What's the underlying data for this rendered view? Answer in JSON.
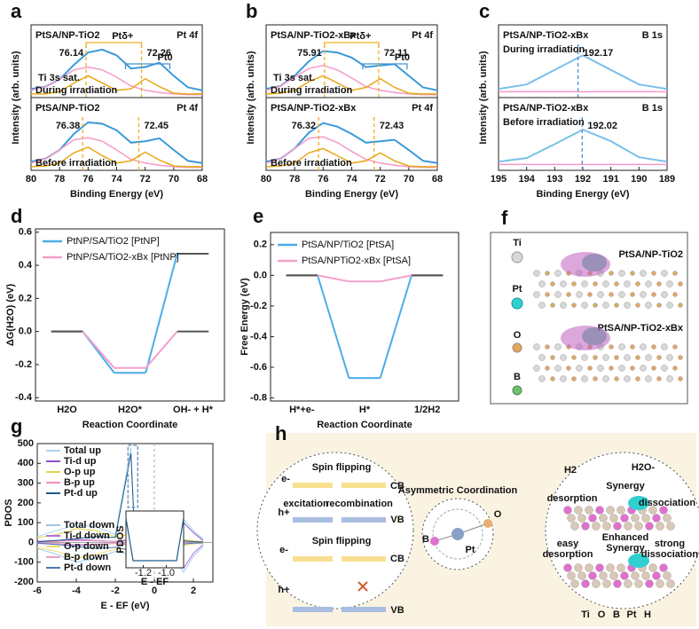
{
  "chart_data": [
    {
      "type": "xps",
      "panel": "a",
      "xlabel": "Binding Energy (eV)",
      "ylabel": "Intensity (arb. units)",
      "xlim": [
        80,
        68
      ],
      "xticks": [
        80,
        78,
        76,
        74,
        72,
        70,
        68
      ],
      "ylim": [
        0,
        1
      ],
      "x": [
        80,
        79,
        78,
        77,
        76,
        75,
        74,
        73,
        72,
        71,
        70,
        69,
        68
      ],
      "subplots": [
        {
          "label": "PtSA/NP-TiO2",
          "core": "Pt 4f",
          "condition": "During irradiation",
          "satellite": "Ti 3s sat.",
          "states": [
            "Ptδ+",
            "Pt0"
          ],
          "peaks": [
            {
              "value": 76.14,
              "color": "#f0b020"
            },
            {
              "value": 72.26,
              "color": "#f0b020"
            }
          ],
          "series": [
            {
              "color": "#3a9ad9",
              "values": [
                0.12,
                0.15,
                0.25,
                0.45,
                0.62,
                0.66,
                0.58,
                0.4,
                0.42,
                0.48,
                0.3,
                0.14,
                0.1
              ]
            },
            {
              "color": "#f59ac8",
              "values": [
                0.1,
                0.15,
                0.25,
                0.38,
                0.42,
                0.38,
                0.28,
                0.16,
                0.1,
                0.07,
                0.05,
                0.04,
                0.04
              ]
            },
            {
              "color": "#e6a817",
              "values": [
                0.05,
                0.05,
                0.08,
                0.2,
                0.3,
                0.2,
                0.1,
                0.12,
                0.26,
                0.15,
                0.06,
                0.05,
                0.05
              ]
            }
          ]
        },
        {
          "label": "PtSA/NP-TiO2",
          "core": "Pt 4f",
          "condition": "Before irradiation",
          "peaks": [
            {
              "value": 76.38,
              "color": "#f0b020"
            },
            {
              "value": 72.45,
              "color": "#f0b020"
            }
          ],
          "series": [
            {
              "color": "#3a9ad9",
              "values": [
                0.12,
                0.16,
                0.28,
                0.5,
                0.66,
                0.64,
                0.55,
                0.38,
                0.4,
                0.44,
                0.28,
                0.13,
                0.1
              ]
            },
            {
              "color": "#f59ac8",
              "values": [
                0.1,
                0.16,
                0.28,
                0.42,
                0.45,
                0.4,
                0.28,
                0.15,
                0.1,
                0.07,
                0.05,
                0.04,
                0.04
              ]
            },
            {
              "color": "#e6a817",
              "values": [
                0.05,
                0.06,
                0.1,
                0.24,
                0.32,
                0.2,
                0.1,
                0.13,
                0.25,
                0.14,
                0.06,
                0.05,
                0.05
              ]
            }
          ]
        }
      ]
    },
    {
      "type": "xps",
      "panel": "b",
      "xlabel": "Binding Energy (eV)",
      "ylabel": "Intensity (arb. units)",
      "xlim": [
        80,
        68
      ],
      "xticks": [
        80,
        78,
        76,
        74,
        72,
        70,
        68
      ],
      "ylim": [
        0,
        1
      ],
      "x": [
        80,
        79,
        78,
        77,
        76,
        75,
        74,
        73,
        72,
        71,
        70,
        69,
        68
      ],
      "subplots": [
        {
          "label": "PtSA/NP-TiO2-xBx",
          "core": "Pt 4f",
          "condition": "During irradiation",
          "satellite": "Ti 3s sat.",
          "states": [
            "Ptδ+",
            "Pt0"
          ],
          "peaks": [
            {
              "value": 75.91,
              "color": "#f0b020"
            },
            {
              "value": 72.11,
              "color": "#f0b020"
            }
          ],
          "series": [
            {
              "color": "#3a9ad9",
              "values": [
                0.12,
                0.16,
                0.3,
                0.5,
                0.64,
                0.62,
                0.55,
                0.42,
                0.44,
                0.46,
                0.3,
                0.14,
                0.1
              ]
            },
            {
              "color": "#f59ac8",
              "values": [
                0.1,
                0.16,
                0.28,
                0.4,
                0.44,
                0.38,
                0.27,
                0.15,
                0.1,
                0.07,
                0.05,
                0.04,
                0.04
              ]
            },
            {
              "color": "#e6a817",
              "values": [
                0.05,
                0.06,
                0.1,
                0.22,
                0.3,
                0.2,
                0.1,
                0.14,
                0.26,
                0.14,
                0.06,
                0.05,
                0.05
              ]
            }
          ]
        },
        {
          "label": "PtSA/NP-TiO2-xBx",
          "core": "Pt 4f",
          "condition": "Before irradiation",
          "peaks": [
            {
              "value": 76.32,
              "color": "#f0b020"
            },
            {
              "value": 72.43,
              "color": "#f0b020"
            }
          ],
          "series": [
            {
              "color": "#3a9ad9",
              "values": [
                0.12,
                0.16,
                0.3,
                0.52,
                0.65,
                0.6,
                0.5,
                0.38,
                0.4,
                0.42,
                0.28,
                0.13,
                0.1
              ]
            },
            {
              "color": "#f59ac8",
              "values": [
                0.1,
                0.16,
                0.3,
                0.44,
                0.46,
                0.38,
                0.26,
                0.15,
                0.1,
                0.07,
                0.05,
                0.04,
                0.04
              ]
            },
            {
              "color": "#e6a817",
              "values": [
                0.05,
                0.06,
                0.1,
                0.24,
                0.3,
                0.2,
                0.1,
                0.13,
                0.24,
                0.13,
                0.06,
                0.05,
                0.05
              ]
            }
          ]
        }
      ]
    },
    {
      "type": "xps",
      "panel": "c",
      "xlabel": "Binding Energy (eV)",
      "ylabel": "Intensity (arb. units)",
      "xlim": [
        195,
        189
      ],
      "xticks": [
        195,
        194,
        193,
        192,
        191,
        190,
        189
      ],
      "ylim": [
        0,
        1
      ],
      "x": [
        195,
        194,
        193,
        192,
        191,
        190,
        189
      ],
      "subplots": [
        {
          "label": "PtSA/NP-TiO2-xBx",
          "core": "B 1s",
          "condition": "During irradiation",
          "peaks": [
            {
              "value": 192.17,
              "color": "#4a90d0"
            }
          ],
          "series": [
            {
              "color": "#7cc0ea",
              "values": [
                0.12,
                0.18,
                0.38,
                0.58,
                0.38,
                0.18,
                0.12
              ]
            },
            {
              "color": "#f59ac8",
              "values": [
                0.08,
                0.08,
                0.08,
                0.08,
                0.08,
                0.08,
                0.08
              ]
            }
          ]
        },
        {
          "label": "PtSA/NP-TiO2-xBx",
          "core": "B 1s",
          "condition": "Before irradiation",
          "peaks": [
            {
              "value": 192.02,
              "color": "#4a90d0"
            }
          ],
          "series": [
            {
              "color": "#7cc0ea",
              "values": [
                0.12,
                0.17,
                0.36,
                0.56,
                0.4,
                0.18,
                0.12
              ]
            },
            {
              "color": "#f59ac8",
              "values": [
                0.08,
                0.08,
                0.08,
                0.08,
                0.08,
                0.08,
                0.08
              ]
            }
          ]
        }
      ]
    },
    {
      "type": "energy",
      "panel": "d",
      "ylabel": "ΔG(H2O) (eV)",
      "xlabel": "Reaction Coordinate",
      "categories": [
        "H2O",
        "H2O*",
        "OH- + H*"
      ],
      "ylim": [
        -0.42,
        0.62
      ],
      "yticks": [
        -0.4,
        -0.2,
        {
          "value": 0,
          "label": "0.0"
        },
        0.2,
        0.4,
        0.6
      ],
      "series": [
        {
          "name": "PtNP/SA/TiO2 [PtNP]",
          "color": "#4aaee8",
          "values": [
            0,
            -0.25,
            0.47
          ]
        },
        {
          "name": "PtNP/SA/TiO2-xBx [PtNP]",
          "color": "#f5a0cc",
          "values": [
            0,
            -0.22,
            0
          ]
        }
      ]
    },
    {
      "type": "energy",
      "panel": "e",
      "ylabel": "Free Energy (eV)",
      "xlabel": "Reaction Coordinate",
      "categories": [
        "H*+e-",
        "H*",
        "1/2H2"
      ],
      "ylim": [
        -0.82,
        0.28
      ],
      "yticks": [
        -0.8,
        -0.6,
        -0.4,
        -0.2,
        {
          "value": 0,
          "label": "0.0"
        },
        0.2
      ],
      "series": [
        {
          "name": "PtSA/NP/TiO2 [PtSA]",
          "color": "#4aaee8",
          "values": [
            0,
            -0.67,
            0
          ]
        },
        {
          "name": "PtSA/NPTiO2-xBx [PtSA]",
          "color": "#f5a0cc",
          "values": [
            0,
            -0.04,
            0
          ]
        }
      ]
    },
    {
      "type": "pdos",
      "panel": "g",
      "ylabel": "PDOS",
      "xlabel": "E - EF (eV)",
      "xlim": [
        -6,
        3
      ],
      "xticks": [
        -6,
        -4,
        -2,
        0,
        2
      ],
      "ylim": [
        -200,
        500
      ],
      "yticks": [
        -200,
        -100,
        0,
        100,
        200,
        300,
        400,
        500
      ],
      "x": [
        -6,
        -5,
        -4,
        -3,
        -2,
        -1.2,
        -1,
        -0.5,
        0,
        0.5,
        1,
        1.5,
        2,
        2.5
      ],
      "series": [
        {
          "name": "Total up",
          "color": "#a8d8f0",
          "values": [
            30,
            60,
            90,
            80,
            40,
            480,
            20,
            5,
            5,
            5,
            80,
            120,
            60,
            20
          ]
        },
        {
          "name": "Ti-d up",
          "color": "#8a4fd0",
          "values": [
            5,
            10,
            15,
            10,
            5,
            10,
            2,
            1,
            1,
            2,
            70,
            100,
            50,
            10
          ]
        },
        {
          "name": "O-p up",
          "color": "#e0d84a",
          "values": [
            25,
            40,
            70,
            60,
            30,
            40,
            5,
            2,
            2,
            2,
            10,
            15,
            8,
            4
          ]
        },
        {
          "name": "B-p up",
          "color": "#f08fc0",
          "values": [
            2,
            5,
            10,
            8,
            5,
            20,
            3,
            1,
            1,
            1,
            5,
            6,
            3,
            1
          ]
        },
        {
          "name": "Pt-d up",
          "color": "#1e5a8a",
          "values": [
            3,
            10,
            20,
            30,
            25,
            450,
            15,
            2,
            2,
            2,
            5,
            8,
            4,
            2
          ]
        },
        {
          "name": "Total down",
          "color": "#9cc8e8",
          "values": [
            -30,
            -60,
            -100,
            -80,
            -45,
            -60,
            -20,
            -5,
            -5,
            -5,
            -80,
            -150,
            -70,
            -20
          ]
        },
        {
          "name": "Ti-d down",
          "color": "#b070e0",
          "values": [
            -5,
            -10,
            -15,
            -10,
            -5,
            -8,
            -2,
            -1,
            -1,
            -2,
            -70,
            -130,
            -55,
            -10
          ]
        },
        {
          "name": "O-p down",
          "color": "#eee070",
          "values": [
            -25,
            -45,
            -80,
            -60,
            -35,
            -30,
            -5,
            -2,
            -2,
            -2,
            -10,
            -15,
            -8,
            -4
          ]
        },
        {
          "name": "B-p down",
          "color": "#f0a0c8",
          "values": [
            -2,
            -5,
            -10,
            -8,
            -5,
            -15,
            -3,
            -1,
            -1,
            -1,
            -5,
            -6,
            -3,
            -1
          ]
        },
        {
          "name": "Pt-d down",
          "color": "#4a7ab0",
          "values": [
            -3,
            -10,
            -20,
            -30,
            -25,
            -40,
            -15,
            -2,
            -2,
            -2,
            -5,
            -8,
            -4,
            -2
          ]
        }
      ],
      "inset": {
        "ylabel": "PDOS",
        "xlabel": "E - EF",
        "xlim": [
          -1.35,
          -0.85
        ],
        "xticks": [
          -1.2,
          {
            "value": -1,
            "label": "-1.0"
          }
        ]
      }
    }
  ],
  "panel_f": {
    "panel": "f",
    "legend": [
      "Ti",
      "Pt",
      "O",
      "B"
    ],
    "labels": [
      "PtSA/NP-TiO2",
      "PtSA/NP-TiO2-xBx"
    ]
  },
  "panel_h": {
    "panel": "h",
    "texts": [
      "Spin flipping",
      "e-",
      "excitation",
      "recombination",
      "CB",
      "h+",
      "VB",
      "Spin flipping",
      "e-",
      "CB",
      "h+",
      "VB",
      "Asymmetric Coordination",
      "B",
      "Pt",
      "O",
      "H2",
      "H2O-",
      "Synergy",
      "desorption",
      "dissociation",
      "easy",
      "desorption",
      "Enhanced",
      "Synergy",
      "strong",
      "dissociation",
      "Ti",
      "O",
      "B",
      "Pt",
      "H"
    ]
  }
}
